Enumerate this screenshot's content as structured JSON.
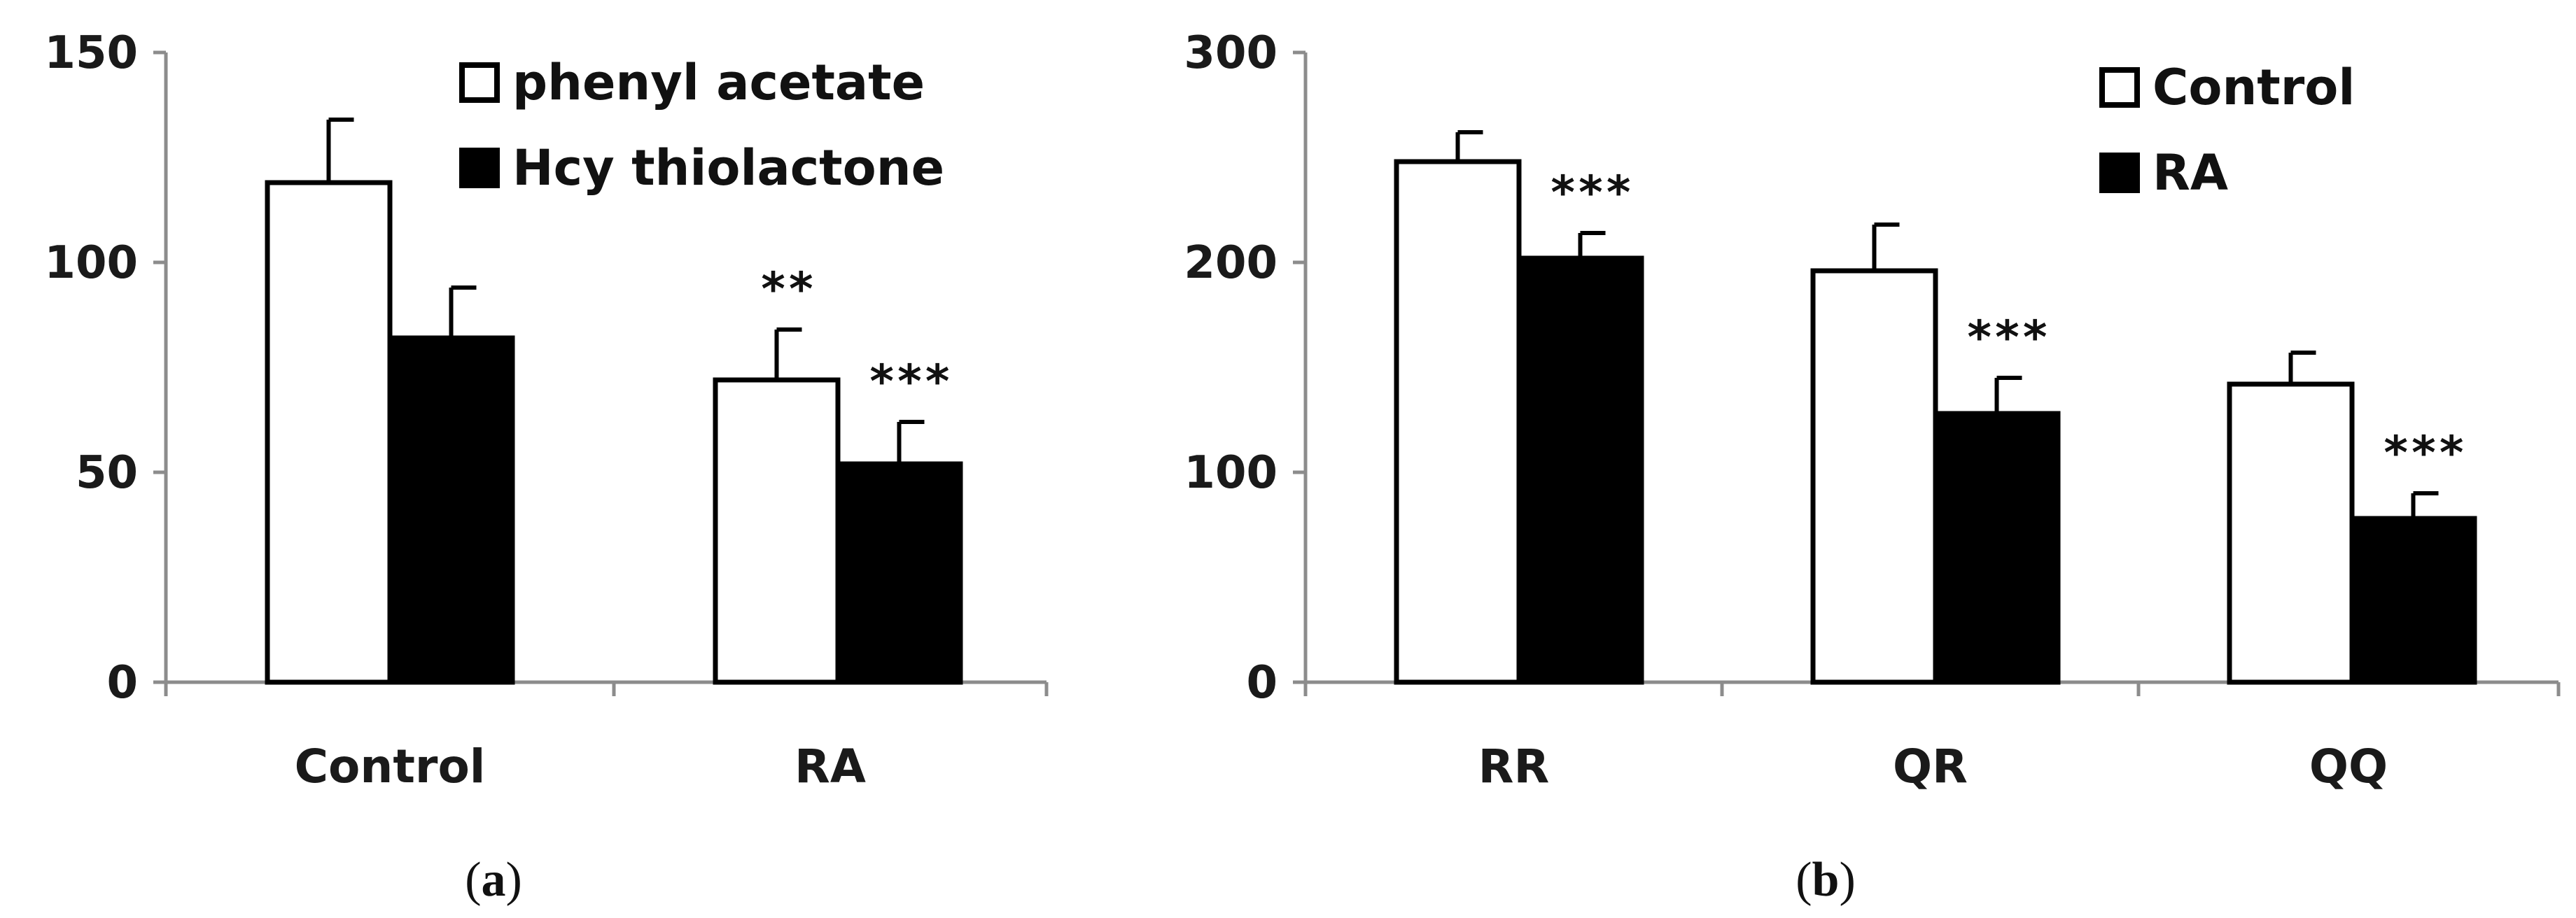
{
  "chart_data": [
    {
      "panel": "(a)",
      "type": "bar",
      "categories": [
        "Control",
        "RA"
      ],
      "series": [
        {
          "name": "phenyl acetate",
          "fill": "#ffffff",
          "values": [
            119,
            72
          ],
          "errors": [
            15,
            12
          ]
        },
        {
          "name": "Hcy thiolactone",
          "fill": "#000000",
          "values": [
            82,
            52
          ],
          "errors": [
            12,
            10
          ]
        }
      ],
      "annotations": [
        {
          "category": 1,
          "series": 0,
          "text": "**"
        },
        {
          "category": 1,
          "series": 1,
          "text": "***"
        }
      ],
      "yticks": [
        "0",
        "50",
        "100",
        "150"
      ],
      "ylim": [
        0,
        150
      ],
      "legend": "top-right"
    },
    {
      "panel": "(b)",
      "type": "bar",
      "categories": [
        "RR",
        "QR",
        "QQ"
      ],
      "series": [
        {
          "name": "Control",
          "fill": "#ffffff",
          "values": [
            248,
            196,
            142
          ],
          "errors": [
            14,
            22,
            15
          ]
        },
        {
          "name": "RA",
          "fill": "#000000",
          "values": [
            202,
            128,
            78
          ],
          "errors": [
            12,
            17,
            12
          ]
        }
      ],
      "annotations": [
        {
          "category": 0,
          "series": 1,
          "text": "***"
        },
        {
          "category": 1,
          "series": 1,
          "text": "***"
        },
        {
          "category": 2,
          "series": 1,
          "text": "***"
        }
      ],
      "yticks": [
        "0",
        "100",
        "200",
        "300"
      ],
      "ylim": [
        0,
        300
      ],
      "legend": "top-right"
    }
  ],
  "colors": {
    "axis": "#8c8c8c",
    "bar_outline": "#000000",
    "text": "#1a1a1a"
  }
}
